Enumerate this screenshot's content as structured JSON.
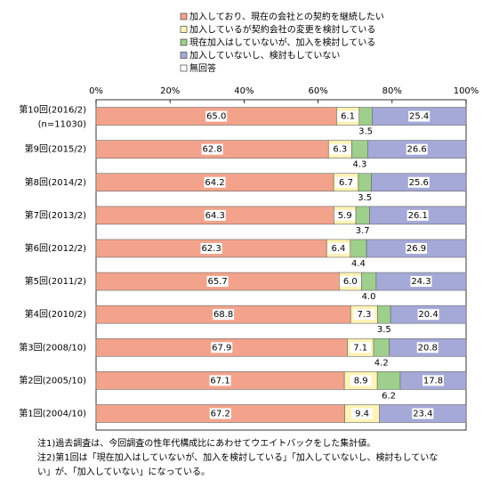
{
  "chart_data": {
    "type": "stacked-bar-horizontal",
    "categories": [
      "第10回(2016/2)",
      "第9回(2015/2)",
      "第8回(2014/2)",
      "第7回(2013/2)",
      "第6回(2012/2)",
      "第5回(2011/2)",
      "第4回(2010/2)",
      "第3回(2008/10)",
      "第2回(2005/10)",
      "第1回(2004/10)"
    ],
    "category_sublabel": "(n=11030)",
    "series": [
      {
        "name": "加入しており、現在の会社との契約を継続したい",
        "color": "#f3a38c",
        "values": [
          65.0,
          62.8,
          64.2,
          64.3,
          62.3,
          65.7,
          68.8,
          67.9,
          67.1,
          67.2
        ],
        "value_labels": [
          "65.0",
          "62.8",
          "64.2",
          "64.3",
          "62.3",
          "65.7",
          "68.8",
          "67.9",
          "67.1",
          "67.2"
        ]
      },
      {
        "name": "加入しているが契約会社の変更を検討している",
        "color": "#fff3b5",
        "values": [
          6.1,
          6.3,
          6.7,
          5.9,
          6.4,
          6.0,
          7.3,
          7.1,
          8.9,
          9.4
        ],
        "value_labels": [
          "6.1",
          "6.3",
          "6.7",
          "5.9",
          "6.4",
          "6.0",
          "7.3",
          "7.1",
          "8.9",
          "9.4"
        ]
      },
      {
        "name": "現在加入はしていないが、加入を検討している",
        "color": "#9fcf8c",
        "values": [
          3.5,
          4.3,
          3.5,
          3.7,
          4.4,
          4.0,
          3.5,
          4.2,
          6.2,
          null
        ],
        "value_labels": [
          "3.5",
          "4.3",
          "3.5",
          "3.7",
          "4.4",
          "4.0",
          "3.5",
          "4.2",
          "6.2",
          null
        ]
      },
      {
        "name": "加入していないし、検討もしていない",
        "color": "#a5a9d8",
        "values": [
          25.4,
          26.6,
          25.6,
          26.1,
          26.9,
          24.3,
          20.4,
          20.8,
          17.8,
          23.4
        ],
        "value_labels": [
          "25.4",
          "26.6",
          "25.6",
          "26.1",
          "26.9",
          "24.3",
          "20.4",
          "20.8",
          "17.8",
          "23.4"
        ]
      },
      {
        "name": "無回答",
        "color": "#ffffff",
        "values": [
          0,
          0,
          0,
          0,
          0,
          0,
          0,
          0,
          0,
          0
        ]
      }
    ],
    "xlim": [
      0,
      100
    ],
    "xticks": [
      {
        "value": 0,
        "label": "0%"
      },
      {
        "value": 20,
        "label": "20%"
      },
      {
        "value": 40,
        "label": "40%"
      },
      {
        "value": 60,
        "label": "60%"
      },
      {
        "value": 80,
        "label": "80%"
      },
      {
        "value": 100,
        "label": "100%"
      }
    ],
    "grid": false,
    "notes": [
      "注1)過去調査は、今回調査の性年代構成比にあわせてウエイトバックをした集計値。",
      "注2)第1回は「現在加入はしていないが、加入を検討している」「加入していないし、検討もしていな",
      "い」が、「加入していない」になっている。"
    ]
  }
}
